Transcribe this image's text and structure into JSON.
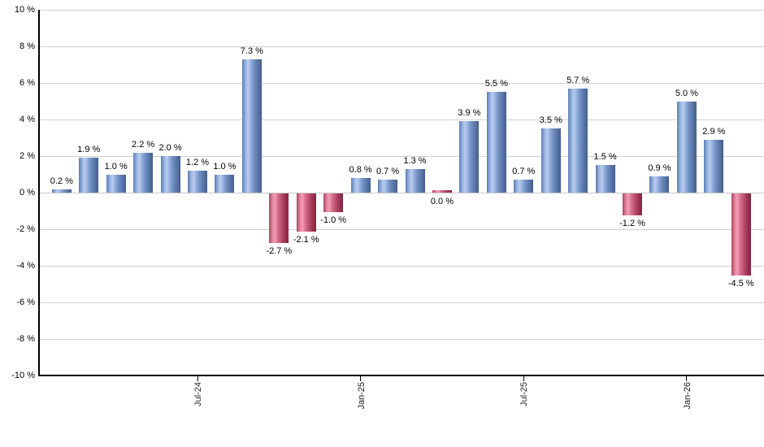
{
  "chart_data": {
    "type": "bar",
    "title": "",
    "unit": "%",
    "ylim": [
      -10,
      10
    ],
    "grid": true,
    "values": [
      0.2,
      1.9,
      1.0,
      2.2,
      2.0,
      1.2,
      1.0,
      7.3,
      -2.7,
      -2.1,
      -1.0,
      0.8,
      0.7,
      1.3,
      0.0,
      3.9,
      5.5,
      0.7,
      3.5,
      5.7,
      1.5,
      -1.2,
      0.9,
      5.0,
      2.9,
      -4.5
    ],
    "bar_labels": [
      "0.2 %",
      "1.9 %",
      "1.0 %",
      "2.2 %",
      "2.0 %",
      "1.2 %",
      "1.0 %",
      "7.3 %",
      "-2.7 %",
      "-2.1 %",
      "-1.0 %",
      "0.8 %",
      "0.7 %",
      "1.3 %",
      "0.0 %",
      "3.9 %",
      "5.5 %",
      "0.7 %",
      "3.5 %",
      "5.7 %",
      "1.5 %",
      "-1.2 %",
      "0.9 %",
      "5.0 %",
      "2.9 %",
      "-4.5 %"
    ],
    "y_axis": {
      "ticks": [
        {
          "value": 10,
          "label": "10 %"
        },
        {
          "value": 8,
          "label": "8 %"
        },
        {
          "value": 6,
          "label": "6 %"
        },
        {
          "value": 4,
          "label": "4 %"
        },
        {
          "value": 2,
          "label": "2 %"
        },
        {
          "value": 0,
          "label": "0 %"
        },
        {
          "value": -2,
          "label": "-2 %"
        },
        {
          "value": -4,
          "label": "-4 %"
        },
        {
          "value": -6,
          "label": "-6 %"
        },
        {
          "value": -8,
          "label": "-8 %"
        },
        {
          "value": -10,
          "label": "-10 %"
        }
      ]
    },
    "x_axis": {
      "ticks": [
        {
          "bar_index": 5,
          "label": "Jul-24"
        },
        {
          "bar_index": 11,
          "label": "Jan-25"
        },
        {
          "bar_index": 17,
          "label": "Jul-25"
        },
        {
          "bar_index": 23,
          "label": "Jan-26"
        }
      ]
    },
    "colors": {
      "positive_gradient": [
        "#5d7eb4 0%",
        "#9ab4e2 18%",
        "#b9cdf0 30%",
        "#93aedd 45%",
        "#7290c3 60%",
        "#5a77a8 80%",
        "#455e8c 100%"
      ],
      "negative_gradient": [
        "#b04060 0%",
        "#e287a0 18%",
        "#f09cb2 30%",
        "#d76f8c 45%",
        "#c05572 60%",
        "#a03453 80%",
        "#832641 100%"
      ],
      "gridline": "#d0d0d0",
      "axis": "#000000",
      "label_text": "#000000"
    }
  }
}
